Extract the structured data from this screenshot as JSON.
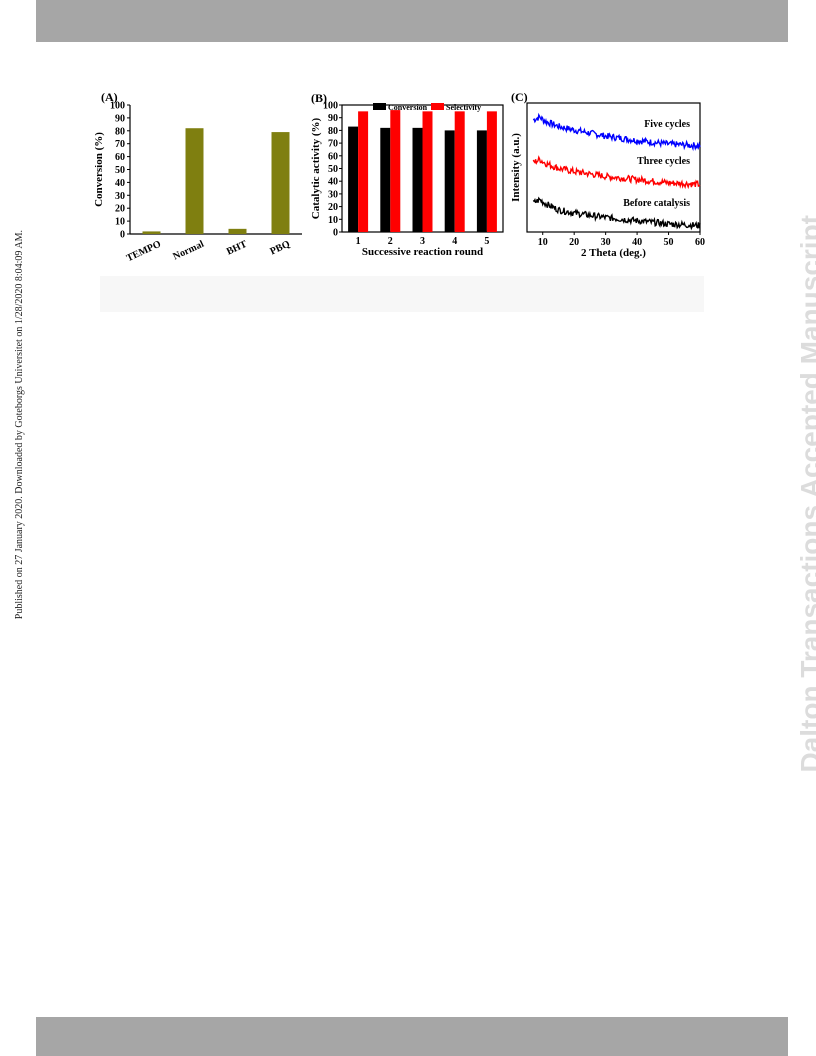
{
  "side_note": "Published on 27 January 2020. Downloaded by Goteborgs Universitet on 1/28/2020 8:04:09 AM.",
  "watermark": "Dalton Transactions Accepted Manuscript",
  "colors": {
    "band": "#a6a6a6",
    "olive": "#7f7f10",
    "black": "#000000",
    "red": "#ff0000",
    "blue": "#0000ff"
  },
  "chart_data": [
    {
      "panel": "(A)",
      "type": "bar",
      "categories": [
        "TEMPO",
        "Normal",
        "BHT",
        "PBQ"
      ],
      "values": [
        2,
        82,
        4,
        79
      ],
      "ylabel": "Conversion (%)",
      "ylim": [
        0,
        100
      ],
      "yticks": [
        0,
        10,
        20,
        30,
        40,
        50,
        60,
        70,
        80,
        90,
        100
      ]
    },
    {
      "panel": "(B)",
      "type": "bar",
      "categories": [
        "1",
        "2",
        "3",
        "4",
        "5"
      ],
      "series": [
        {
          "name": "Conversion",
          "values": [
            83,
            82,
            82,
            80,
            80
          ]
        },
        {
          "name": "Selectivity",
          "values": [
            95,
            96,
            95,
            95,
            95
          ]
        }
      ],
      "xlabel": "Successive reaction round",
      "ylabel": "Catalytic activity (%)",
      "ylim": [
        0,
        100
      ],
      "yticks": [
        0,
        10,
        20,
        30,
        40,
        50,
        60,
        70,
        80,
        90,
        100
      ],
      "legend": "top"
    },
    {
      "panel": "(C)",
      "type": "line",
      "xlabel": "2 Theta (deg.)",
      "ylabel": "Intensity (a.u.)",
      "xlim": [
        5,
        60
      ],
      "xticks": [
        10,
        20,
        30,
        40,
        50,
        60
      ],
      "series": [
        {
          "name": "Five cycles",
          "x": [
            7,
            9,
            11,
            15,
            20,
            30,
            40,
            50,
            60
          ],
          "y": [
            2.78,
            2.85,
            2.74,
            2.62,
            2.53,
            2.38,
            2.27,
            2.18,
            2.14
          ]
        },
        {
          "name": "Three cycles",
          "x": [
            7,
            9,
            11,
            15,
            20,
            30,
            40,
            50,
            60
          ],
          "y": [
            1.72,
            1.8,
            1.7,
            1.58,
            1.5,
            1.38,
            1.3,
            1.22,
            1.18
          ]
        },
        {
          "name": "Before catalysis",
          "x": [
            7,
            9,
            11,
            15,
            20,
            30,
            40,
            50,
            60
          ],
          "y": [
            0.72,
            0.8,
            0.7,
            0.55,
            0.47,
            0.36,
            0.28,
            0.2,
            0.16
          ]
        }
      ]
    }
  ]
}
